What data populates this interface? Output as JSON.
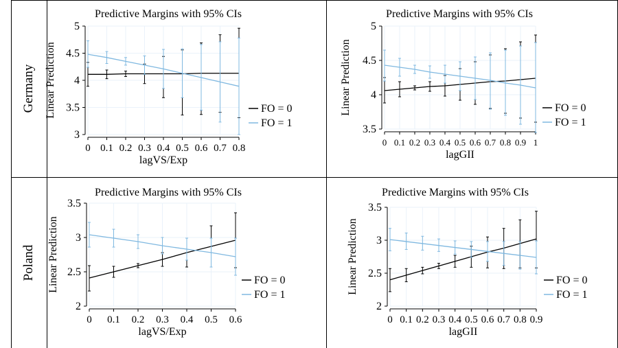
{
  "row_labels": [
    "Germany",
    "Poland"
  ],
  "colors": {
    "fo0": "#000000",
    "fo1": "#7fb8e0",
    "grid": "#eaf2fa"
  },
  "chart_data": [
    {
      "type": "line",
      "row": "Germany",
      "title": "Predictive Margins with 95% CIs",
      "xlabel": "lagVS/Exp",
      "ylabel": "Linear Prediction",
      "xlim": [
        0,
        0.8
      ],
      "ylim": [
        3,
        5
      ],
      "xticks": [
        0,
        0.1,
        0.2,
        0.3,
        0.4,
        0.5,
        0.6,
        0.7,
        0.8
      ],
      "yticks": [
        3,
        3.5,
        4,
        4.5,
        5
      ],
      "xtick_labels": [
        "0",
        "0.1",
        "0.2",
        "0.3",
        "0.4",
        "0.5",
        "0.6",
        "0.7",
        "0.8"
      ],
      "ytick_labels": [
        "3",
        "3.5",
        "4",
        "4.5",
        "5"
      ],
      "legend": [
        "FO = 0",
        "FO = 1"
      ],
      "series": [
        {
          "name": "FO = 0",
          "x": [
            0,
            0.1,
            0.2,
            0.3,
            0.4,
            0.5,
            0.6,
            0.7,
            0.8
          ],
          "y": [
            4.11,
            4.11,
            4.12,
            4.12,
            4.12,
            4.12,
            4.13,
            4.13,
            4.13
          ],
          "lo": [
            3.89,
            4.03,
            4.07,
            3.94,
            3.68,
            3.36,
            3.37,
            3.41,
            3.31
          ],
          "hi": [
            4.33,
            4.19,
            4.17,
            4.3,
            4.44,
            4.56,
            4.69,
            4.84,
            4.96
          ]
        },
        {
          "name": "FO = 1",
          "x": [
            0,
            0.1,
            0.2,
            0.3,
            0.4,
            0.5,
            0.6,
            0.7,
            0.8
          ],
          "y": [
            4.48,
            4.42,
            4.35,
            4.28,
            4.21,
            4.13,
            4.05,
            3.97,
            3.89
          ],
          "lo": [
            4.24,
            4.31,
            4.28,
            4.11,
            3.85,
            3.68,
            3.45,
            3.23,
            3.0
          ],
          "hi": [
            4.73,
            4.53,
            4.42,
            4.45,
            4.57,
            4.58,
            4.66,
            4.71,
            4.78
          ]
        }
      ]
    },
    {
      "type": "line",
      "row": "Germany",
      "title": "Predictive Margins with 95% CIs",
      "xlabel": "lagGII",
      "ylabel": "Linear Prediction",
      "xlim": [
        0,
        1
      ],
      "ylim": [
        3.5,
        5
      ],
      "xticks": [
        0,
        0.1,
        0.2,
        0.3,
        0.4,
        0.5,
        0.6,
        0.7,
        0.8,
        0.9,
        1
      ],
      "yticks": [
        3.5,
        4,
        4.5,
        5
      ],
      "xtick_labels": [
        "0",
        "0.1",
        "0.2",
        "0.3",
        "0.4",
        "0.5",
        "0.6",
        "0.7",
        "0.8",
        "0.9",
        "1"
      ],
      "ytick_labels": [
        "3.5",
        "4",
        "4.5",
        "5"
      ],
      "legend": [
        "FO = 0",
        "FO = 1"
      ],
      "series": [
        {
          "name": "FO = 0",
          "x": [
            0,
            0.1,
            0.2,
            0.3,
            0.4,
            0.5,
            0.6,
            0.7,
            0.8,
            0.9,
            1
          ],
          "y": [
            4.06,
            4.08,
            4.1,
            4.12,
            4.13,
            4.15,
            4.17,
            4.19,
            4.2,
            4.22,
            4.24
          ],
          "lo": [
            3.88,
            3.97,
            4.07,
            4.05,
            3.98,
            3.92,
            3.86,
            3.8,
            3.73,
            3.66,
            3.6
          ],
          "hi": [
            4.25,
            4.19,
            4.13,
            4.19,
            4.28,
            4.38,
            4.48,
            4.58,
            4.67,
            4.77,
            4.87
          ]
        },
        {
          "name": "FO = 1",
          "x": [
            0,
            0.1,
            0.2,
            0.3,
            0.4,
            0.5,
            0.6,
            0.7,
            0.8,
            0.9,
            1
          ],
          "y": [
            4.43,
            4.4,
            4.37,
            4.33,
            4.3,
            4.27,
            4.24,
            4.21,
            4.17,
            4.14,
            4.1
          ],
          "lo": [
            4.2,
            4.27,
            4.31,
            4.24,
            4.17,
            4.06,
            3.93,
            3.79,
            3.7,
            3.57,
            3.45
          ],
          "hi": [
            4.65,
            4.53,
            4.43,
            4.42,
            4.43,
            4.48,
            4.55,
            4.61,
            4.65,
            4.71,
            4.76
          ]
        }
      ]
    },
    {
      "type": "line",
      "row": "Poland",
      "title": "Predictive Margins with 95% CIs",
      "xlabel": "lagVS/Exp",
      "ylabel": "Linear Prediction",
      "xlim": [
        0,
        0.6
      ],
      "ylim": [
        2,
        3.5
      ],
      "xticks": [
        0,
        0.1,
        0.2,
        0.3,
        0.4,
        0.5,
        0.6
      ],
      "yticks": [
        2,
        2.5,
        3,
        3.5
      ],
      "xtick_labels": [
        "0",
        "0.1",
        "0.2",
        "0.3",
        "0.4",
        "0.5",
        "0.6"
      ],
      "ytick_labels": [
        "2",
        "2.5",
        "3",
        "3.5"
      ],
      "legend": [
        "FO = 0",
        "FO = 1"
      ],
      "series": [
        {
          "name": "FO = 0",
          "x": [
            0,
            0.1,
            0.2,
            0.3,
            0.4,
            0.5,
            0.6
          ],
          "y": [
            2.41,
            2.5,
            2.59,
            2.68,
            2.78,
            2.87,
            2.96
          ],
          "lo": [
            2.22,
            2.42,
            2.56,
            2.58,
            2.57,
            2.57,
            2.56
          ],
          "hi": [
            2.59,
            2.58,
            2.62,
            2.78,
            2.99,
            3.17,
            3.36
          ]
        },
        {
          "name": "FO = 1",
          "x": [
            0,
            0.1,
            0.2,
            0.3,
            0.4,
            0.5,
            0.6
          ],
          "y": [
            3.04,
            2.99,
            2.94,
            2.88,
            2.83,
            2.78,
            2.72
          ],
          "lo": [
            2.86,
            2.86,
            2.84,
            2.76,
            2.67,
            2.57,
            2.45
          ],
          "hi": [
            3.22,
            3.12,
            3.04,
            3.0,
            2.99,
            2.99,
            2.99
          ]
        }
      ]
    },
    {
      "type": "line",
      "row": "Poland",
      "title": "Predictive Margins with 95% CIs",
      "xlabel": "lagGII",
      "ylabel": "Linear Prediction",
      "xlim": [
        0,
        0.9
      ],
      "ylim": [
        2,
        3.5
      ],
      "xticks": [
        0,
        0.1,
        0.2,
        0.3,
        0.4,
        0.5,
        0.6,
        0.7,
        0.8,
        0.9
      ],
      "yticks": [
        2,
        2.5,
        3,
        3.5
      ],
      "xtick_labels": [
        "0",
        "0.1",
        "0.2",
        "0.3",
        "0.4",
        "0.5",
        "0.6",
        "0.7",
        "0.8",
        "0.9"
      ],
      "ytick_labels": [
        "2",
        "2.5",
        "3",
        "3.5"
      ],
      "legend": [
        "FO = 0",
        "FO = 1"
      ],
      "series": [
        {
          "name": "FO = 0",
          "x": [
            0,
            0.1,
            0.2,
            0.3,
            0.4,
            0.5,
            0.6,
            0.7,
            0.8,
            0.9
          ],
          "y": [
            2.4,
            2.47,
            2.54,
            2.61,
            2.68,
            2.75,
            2.82,
            2.88,
            2.95,
            3.02
          ],
          "lo": [
            2.22,
            2.37,
            2.49,
            2.57,
            2.59,
            2.59,
            2.58,
            2.57,
            2.58,
            2.58
          ],
          "hi": [
            2.57,
            2.57,
            2.59,
            2.65,
            2.77,
            2.91,
            3.05,
            3.18,
            3.31,
            3.44
          ]
        },
        {
          "name": "FO = 1",
          "x": [
            0,
            0.1,
            0.2,
            0.3,
            0.4,
            0.5,
            0.6,
            0.7,
            0.8,
            0.9
          ],
          "y": [
            3.01,
            2.98,
            2.95,
            2.92,
            2.89,
            2.86,
            2.83,
            2.8,
            2.77,
            2.74
          ],
          "lo": [
            2.84,
            2.86,
            2.85,
            2.83,
            2.79,
            2.74,
            2.68,
            2.62,
            2.56,
            2.49
          ],
          "hi": [
            3.18,
            3.11,
            3.06,
            3.02,
            2.99,
            2.98,
            2.98,
            2.98,
            2.98,
            2.99
          ]
        }
      ]
    }
  ]
}
